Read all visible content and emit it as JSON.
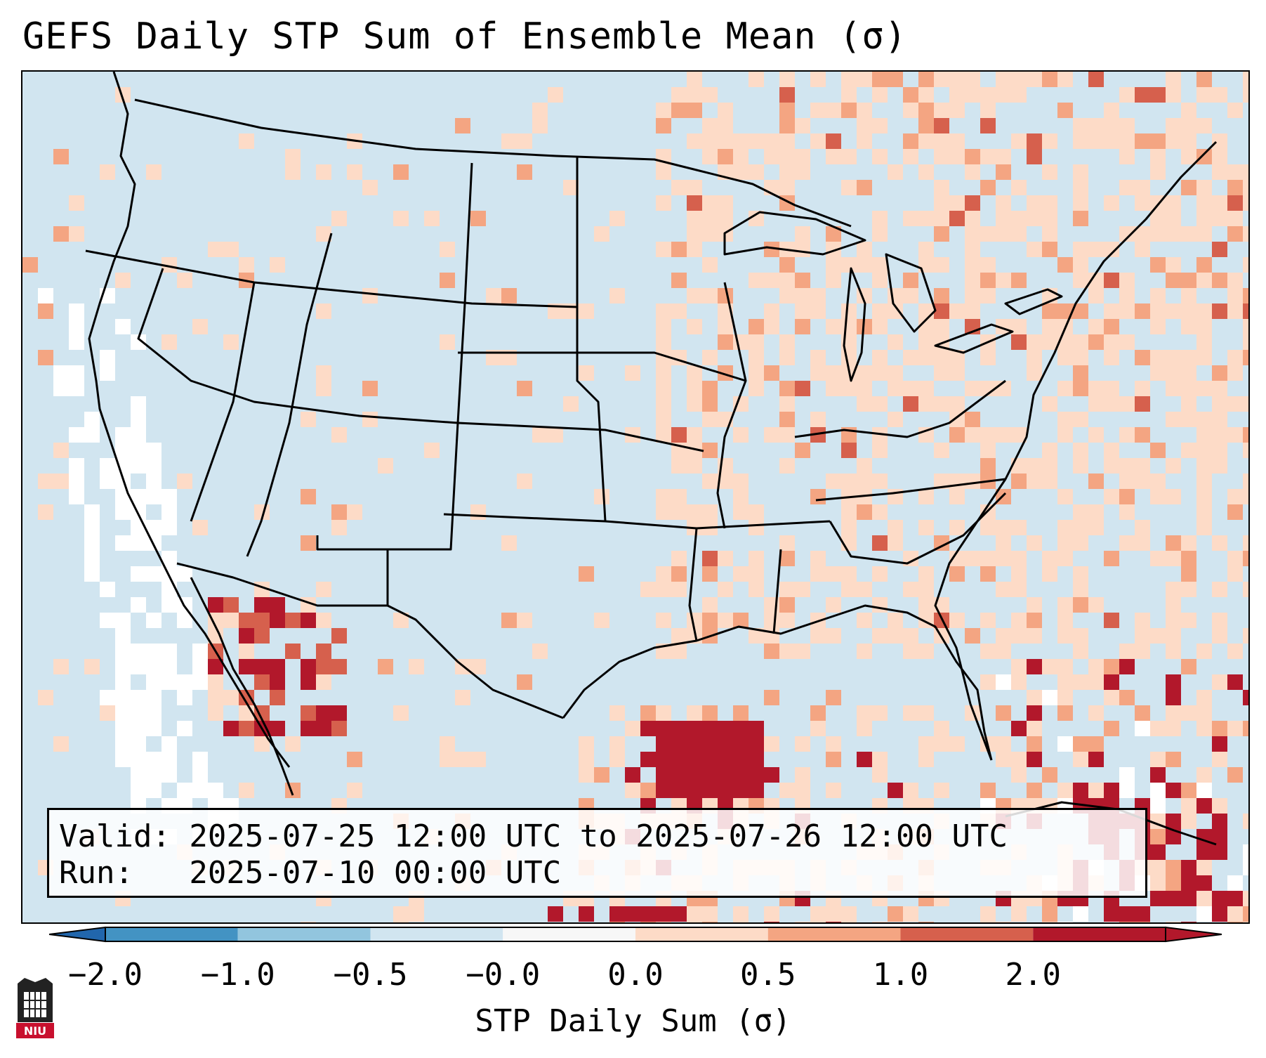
{
  "title": "GEFS Daily STP Sum of Ensemble Mean (σ)",
  "info": {
    "valid_line": "Valid: 2025-07-25 12:00 UTC to 2025-07-26 12:00 UTC",
    "run_line": "Run:   2025-07-10 00:00 UTC"
  },
  "colorbar": {
    "label": "STP Daily Sum (σ)",
    "ticks": [
      "−2.0",
      "−1.0",
      "−0.5",
      "−0.0",
      "0.0",
      "0.5",
      "1.0",
      "2.0"
    ],
    "colors": [
      "#4393c3",
      "#92c5de",
      "#d1e5f0",
      "#f7f7f7",
      "#fddbc7",
      "#f4a582",
      "#d6604d",
      "#b2182b"
    ],
    "extend_low_color": "#2166ac",
    "extend_high_color": "#b2182b"
  },
  "logo": {
    "text": "NIU"
  },
  "map_colors": {
    "ocean_land_base": "#d1e5f0",
    "near_zero": "#ffffff",
    "light_pos": "#fddbc7",
    "mid_pos": "#f4a582",
    "high_pos": "#d6604d",
    "very_high": "#b2182b",
    "light_neg": "#92c5de"
  }
}
